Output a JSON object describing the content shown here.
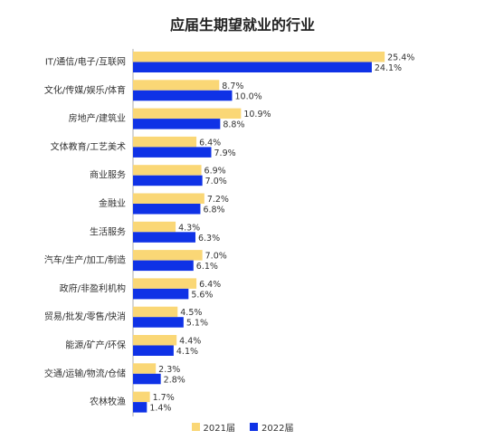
{
  "chart_data": {
    "type": "bar",
    "orientation": "horizontal",
    "title": "应届生期望就业的行业",
    "categories": [
      "IT/通信/电子/互联网",
      "文化/传媒/娱乐/体育",
      "房地产/建筑业",
      "文体教育/工艺美术",
      "商业服务",
      "金融业",
      "生活服务",
      "汽车/生产/加工/制造",
      "政府/非盈利机构",
      "贸易/批发/零售/快消",
      "能源/矿产/环保",
      "交通/运输/物流/仓储",
      "农林牧渔"
    ],
    "series": [
      {
        "name": "2021届",
        "color": "#FAD776",
        "values": [
          25.4,
          8.7,
          10.9,
          6.4,
          6.9,
          7.2,
          4.3,
          7.0,
          6.4,
          4.5,
          4.4,
          2.3,
          1.7
        ],
        "labels": [
          "25.4%",
          "8.7%",
          "10.9%",
          "6.4%",
          "6.9%",
          "7.2%",
          "4.3%",
          "7.0%",
          "6.4%",
          "4.5%",
          "4.4%",
          "2.3%",
          "1.7%"
        ]
      },
      {
        "name": "2022届",
        "color": "#0F32E6",
        "values": [
          24.1,
          10.0,
          8.8,
          7.9,
          7.0,
          6.8,
          6.3,
          6.1,
          5.6,
          5.1,
          4.1,
          2.8,
          1.4
        ],
        "labels": [
          "24.1%",
          "10.0%",
          "8.8%",
          "7.9%",
          "7.0%",
          "6.8%",
          "6.3%",
          "6.1%",
          "5.6%",
          "5.1%",
          "4.1%",
          "2.8%",
          "1.4%"
        ]
      }
    ],
    "xlim": [
      0,
      27
    ],
    "grid": false,
    "legend_position": "bottom"
  }
}
